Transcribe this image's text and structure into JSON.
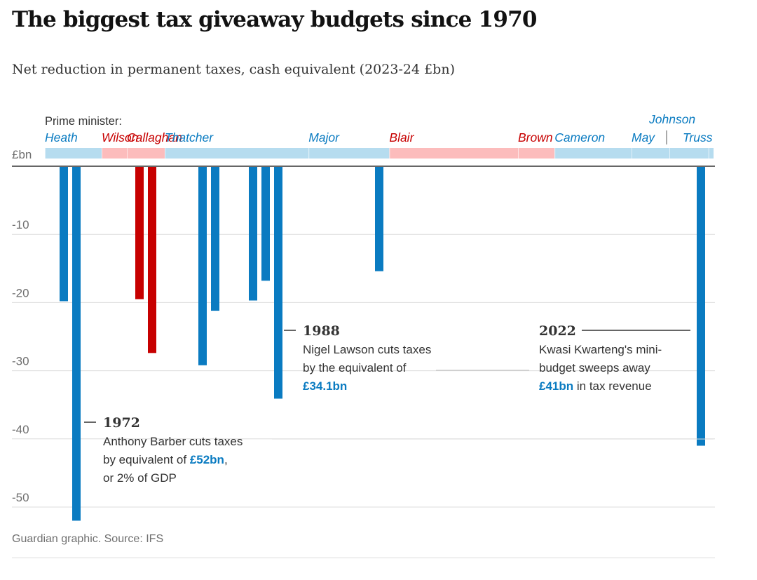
{
  "title": "The biggest tax giveaway budgets since 1970",
  "subtitle": "Net reduction in permanent taxes, cash equivalent (2023-24 £bn)",
  "source": "Guardian graphic. Source: IFS",
  "colors": {
    "conservative": "#0a7bc1",
    "labour": "#c70000",
    "conservative_band": "#b6dcef",
    "labour_band": "#fcbcbc",
    "grid": "#dcdcdc",
    "axis": "#333333"
  },
  "chart_data": {
    "type": "bar",
    "title": "The biggest tax giveaway budgets since 1970",
    "subtitle": "Net reduction in permanent taxes, cash equivalent (2023-24 £bn)",
    "ylabel": "£bn",
    "ylim": [
      -52,
      0
    ],
    "yticks": [
      -10,
      -20,
      -30,
      -40,
      -50
    ],
    "grid": true,
    "x_range": [
      1970,
      2023
    ],
    "pm_label": "Prime minister:",
    "prime_ministers": [
      {
        "name": "Heath",
        "party": "Conservative",
        "start": 1970.0,
        "end": 1974.5,
        "label_row": 1
      },
      {
        "name": "Wilson",
        "party": "Labour",
        "start": 1974.5,
        "end": 1976.5,
        "label_row": 1
      },
      {
        "name": "Callaghan",
        "party": "Labour",
        "start": 1976.5,
        "end": 1979.5,
        "label_row": 1
      },
      {
        "name": "Thatcher",
        "party": "Conservative",
        "start": 1979.5,
        "end": 1990.9,
        "label_row": 1
      },
      {
        "name": "Major",
        "party": "Conservative",
        "start": 1990.9,
        "end": 1997.3,
        "label_row": 1
      },
      {
        "name": "Blair",
        "party": "Labour",
        "start": 1997.3,
        "end": 2007.5,
        "label_row": 1
      },
      {
        "name": "Brown",
        "party": "Labour",
        "start": 2007.5,
        "end": 2010.4,
        "label_row": 1
      },
      {
        "name": "Cameron",
        "party": "Conservative",
        "start": 2010.4,
        "end": 2016.5,
        "label_row": 1
      },
      {
        "name": "May",
        "party": "Conservative",
        "start": 2016.5,
        "end": 2019.5,
        "label_row": 1
      },
      {
        "name": "Johnson",
        "party": "Conservative",
        "start": 2019.5,
        "end": 2022.6,
        "label_row": 0
      },
      {
        "name": "Truss",
        "party": "Conservative",
        "start": 2022.6,
        "end": 2023.0,
        "label_row": 1
      }
    ],
    "series": [
      {
        "points": [
          {
            "x": 1971.5,
            "y": -19.8,
            "party": "Conservative"
          },
          {
            "x": 1972.5,
            "y": -52,
            "party": "Conservative"
          },
          {
            "x": 1977.5,
            "y": -19.5,
            "party": "Labour"
          },
          {
            "x": 1978.5,
            "y": -27.4,
            "party": "Labour"
          },
          {
            "x": 1982.5,
            "y": -29.2,
            "party": "Conservative"
          },
          {
            "x": 1983.5,
            "y": -21.2,
            "party": "Conservative"
          },
          {
            "x": 1986.5,
            "y": -19.7,
            "party": "Conservative"
          },
          {
            "x": 1987.5,
            "y": -16.8,
            "party": "Conservative"
          },
          {
            "x": 1988.5,
            "y": -34.1,
            "party": "Conservative"
          },
          {
            "x": 1996.5,
            "y": -15.4,
            "party": "Conservative"
          },
          {
            "x": 2022.0,
            "y": -41,
            "party": "Conservative"
          }
        ]
      }
    ],
    "annotations": [
      {
        "year": "1972",
        "lines": [
          "Anthony Barber cuts taxes",
          "by equivalent of ",
          "or 2% of GDP"
        ],
        "line2_highlight": "£52bn",
        "line2_suffix": ","
      },
      {
        "year": "1988",
        "lines": [
          "Nigel Lawson cuts taxes",
          "by the equivalent of"
        ],
        "highlight": "£34.1bn"
      },
      {
        "year": "2022",
        "lines": [
          "Kwasi Kwarteng's mini-",
          "budget sweeps away"
        ],
        "highlight": "£41bn",
        "line3_suffix": " in tax revenue"
      }
    ]
  }
}
